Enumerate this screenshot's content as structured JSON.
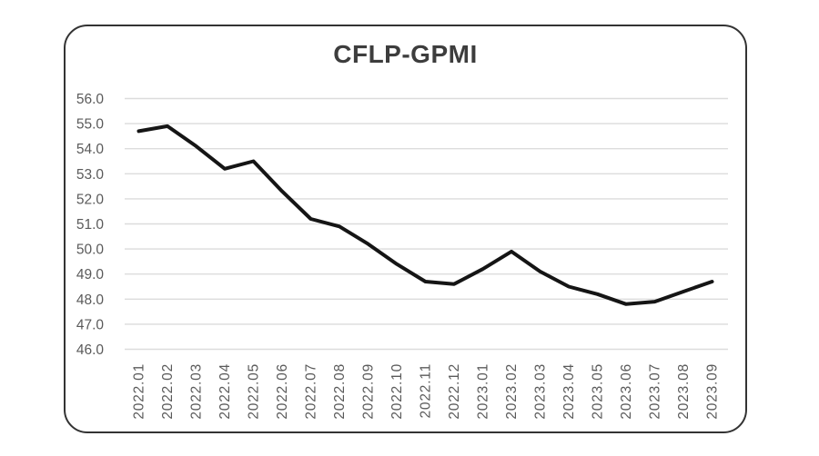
{
  "page": {
    "background": "#ffffff"
  },
  "card": {
    "border_color": "#333333"
  },
  "chart_data": {
    "type": "line",
    "title": "CFLP-GPMI",
    "xlabel": "",
    "ylabel": "",
    "categories": [
      "2022.01",
      "2022.02",
      "2022.03",
      "2022.04",
      "2022.05",
      "2022.06",
      "2022.07",
      "2022.08",
      "2022.09",
      "2022.10",
      "2022.11",
      "2022.12",
      "2023.01",
      "2023.02",
      "2023.03",
      "2023.04",
      "2023.05",
      "2023.06",
      "2023.07",
      "2023.08",
      "2023.09"
    ],
    "series": [
      {
        "name": "CFLP-GPMI",
        "values": [
          54.7,
          54.9,
          54.1,
          53.2,
          53.5,
          52.3,
          51.2,
          50.9,
          50.2,
          49.4,
          48.7,
          48.6,
          49.2,
          49.9,
          49.1,
          48.5,
          48.2,
          47.8,
          47.9,
          48.3,
          48.7
        ]
      }
    ],
    "ylim": [
      46.0,
      56.0
    ],
    "ytick_step": 1.0,
    "ytick_labels": [
      "56.0",
      "55.0",
      "54.0",
      "53.0",
      "52.0",
      "51.0",
      "50.0",
      "49.0",
      "48.0",
      "47.0",
      "46.0"
    ],
    "grid": "horizontal",
    "legend": "none",
    "x_tick_rotation_deg": 90,
    "line_color": "#151515",
    "grid_color": "#dcdcdc",
    "tick_label_color": "#5a5a5a",
    "title_color": "#3d3d3d"
  }
}
